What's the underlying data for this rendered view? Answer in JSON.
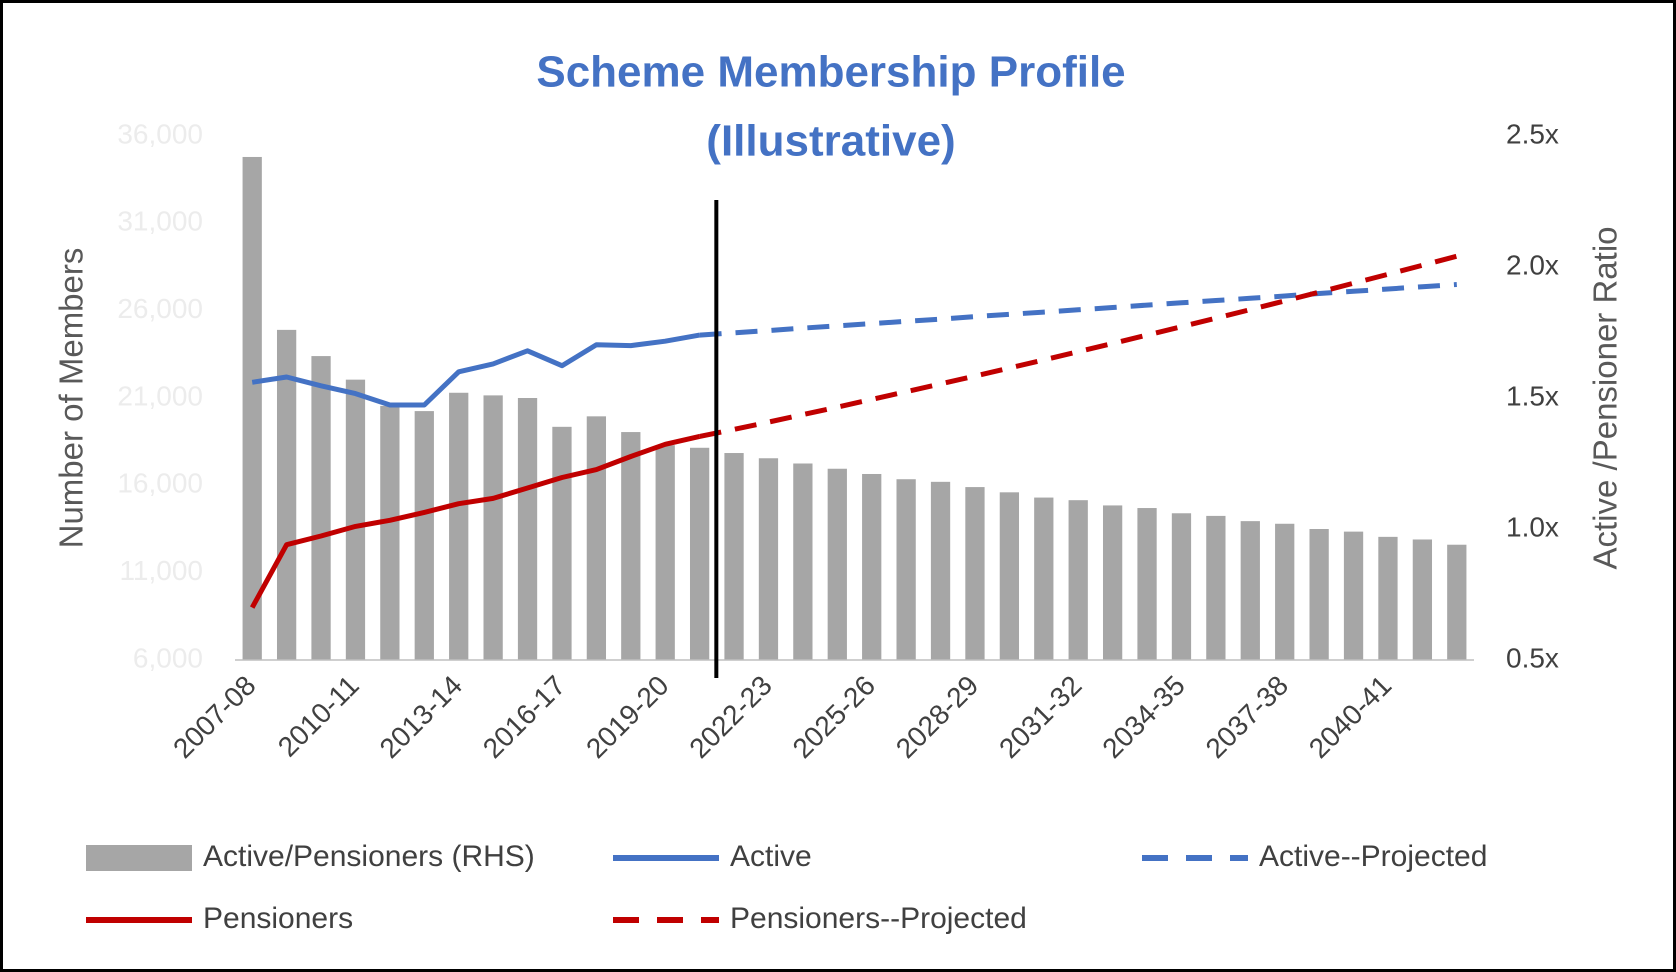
{
  "chart_data": {
    "type": "combo",
    "title": [
      "Scheme Membership Profile",
      "(Illustrative)"
    ],
    "title_color": "#4472c4",
    "y_label": "Number of Members",
    "y2_label": "Active /Pensioner Ratio",
    "categories": [
      "2007-08",
      null,
      null,
      "2010-11",
      null,
      null,
      "2013-14",
      null,
      null,
      "2016-17",
      null,
      null,
      "2019-20",
      null,
      null,
      "2022-23",
      null,
      null,
      "2025-26",
      null,
      null,
      "2028-29",
      null,
      null,
      "2031-32",
      null,
      null,
      "2034-35",
      null,
      null,
      "2037-38",
      null,
      null,
      "2040-41",
      null,
      null
    ],
    "ylim": [
      6000,
      36000
    ],
    "yticks": [
      {
        "value": 6000,
        "label": "6,000"
      },
      {
        "value": 11000,
        "label": "11,000"
      },
      {
        "value": 16000,
        "label": "16,000"
      },
      {
        "value": 21000,
        "label": "21,000"
      },
      {
        "value": 26000,
        "label": "26,000"
      },
      {
        "value": 31000,
        "label": "31,000"
      },
      {
        "value": 36000,
        "label": "36,000"
      }
    ],
    "y2lim": [
      0.5,
      2.5
    ],
    "y2ticks": [
      {
        "value": 0.5,
        "label": "0.5x"
      },
      {
        "value": 1.0,
        "label": "1.0x"
      },
      {
        "value": 1.5,
        "label": "1.5x"
      },
      {
        "value": 2.0,
        "label": "2.0x"
      },
      {
        "value": 2.5,
        "label": "2.5x"
      }
    ],
    "series": [
      {
        "name": "Active/Pensioners (RHS)",
        "type": "bar",
        "axis": "y2",
        "color": "#a6a6a6",
        "values": [
          2.42,
          1.76,
          1.66,
          1.57,
          1.47,
          1.45,
          1.52,
          1.51,
          1.5,
          1.39,
          1.43,
          1.37,
          1.32,
          1.31,
          1.29,
          1.27,
          1.25,
          1.23,
          1.21,
          1.19,
          1.18,
          1.16,
          1.14,
          1.12,
          1.11,
          1.09,
          1.08,
          1.06,
          1.05,
          1.03,
          1.02,
          1.0,
          0.99,
          0.97,
          0.96,
          0.94
        ]
      },
      {
        "name": "Active",
        "type": "line",
        "dashed": false,
        "color": "#4472c4",
        "values": [
          21900,
          22200,
          21700,
          21250,
          20600,
          20600,
          22500,
          22950,
          23700,
          22850,
          24050,
          24000,
          24250,
          24600,
          null,
          null,
          null,
          null,
          null,
          null,
          null,
          null,
          null,
          null,
          null,
          null,
          null,
          null,
          null,
          null,
          null,
          null,
          null,
          null,
          null,
          null
        ]
      },
      {
        "name": "Active--Projected",
        "type": "line",
        "dashed": true,
        "color": "#4472c4",
        "values": [
          null,
          null,
          null,
          null,
          null,
          null,
          null,
          null,
          null,
          null,
          null,
          null,
          null,
          24600,
          24730,
          24860,
          25000,
          25130,
          25260,
          25390,
          25520,
          25660,
          25790,
          25920,
          26050,
          26180,
          26320,
          26450,
          26580,
          26710,
          26840,
          26980,
          27110,
          27240,
          27370,
          27500
        ]
      },
      {
        "name": "Pensioners",
        "type": "line",
        "dashed": false,
        "color": "#c00000",
        "values": [
          9000,
          12600,
          13100,
          13650,
          14000,
          14450,
          14950,
          15250,
          15850,
          16450,
          16900,
          17650,
          18350,
          18800,
          null,
          null,
          null,
          null,
          null,
          null,
          null,
          null,
          null,
          null,
          null,
          null,
          null,
          null,
          null,
          null,
          null,
          null,
          null,
          null,
          null,
          null
        ]
      },
      {
        "name": "Pensioners--Projected",
        "type": "line",
        "dashed": true,
        "color": "#c00000",
        "values": [
          null,
          null,
          null,
          null,
          null,
          null,
          null,
          null,
          null,
          null,
          null,
          null,
          null,
          18800,
          19200,
          19620,
          20050,
          20480,
          20920,
          21360,
          21810,
          22260,
          22720,
          23180,
          23650,
          24120,
          24600,
          25080,
          25570,
          26060,
          26560,
          27060,
          27570,
          28080,
          28600,
          29120
        ]
      }
    ]
  }
}
